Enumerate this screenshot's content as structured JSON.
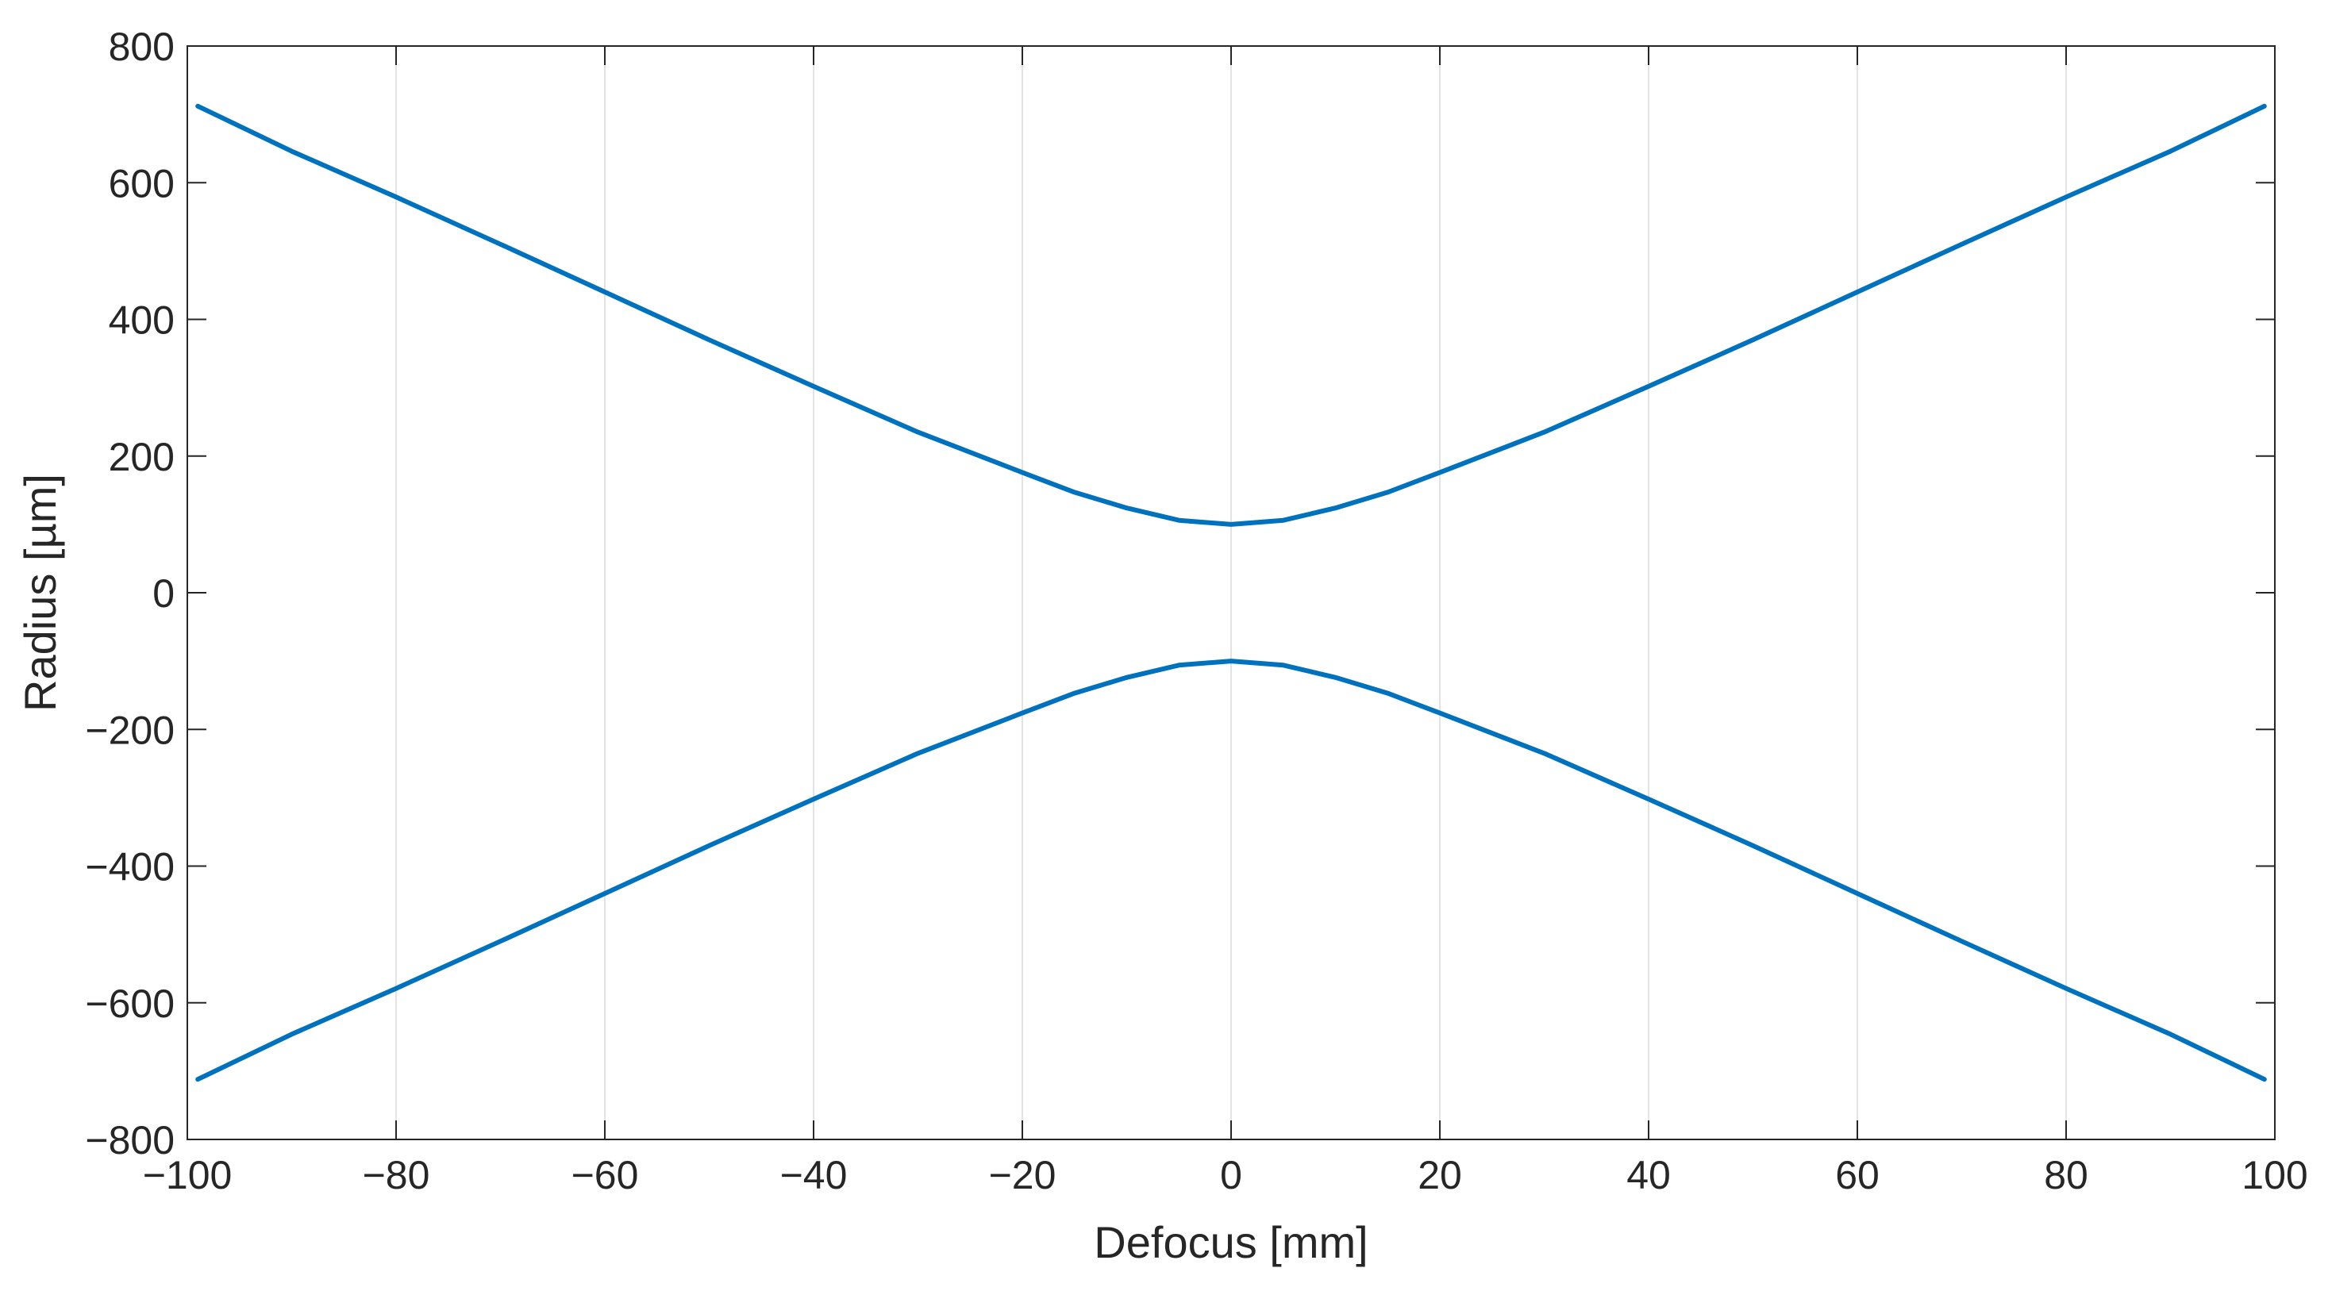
{
  "chart_data": {
    "type": "line",
    "title": "",
    "xlabel": "Defocus [mm]",
    "ylabel": "Radius [µm]",
    "xlim": [
      -100,
      100
    ],
    "ylim": [
      -800,
      800
    ],
    "x_ticks": [
      -100,
      -80,
      -60,
      -40,
      -20,
      0,
      20,
      40,
      60,
      80,
      100
    ],
    "x_tick_labels": [
      "−100",
      "−80",
      "−60",
      "−40",
      "−20",
      "0",
      "20",
      "40",
      "60",
      "80",
      "100"
    ],
    "y_ticks": [
      800,
      600,
      400,
      200,
      0,
      -200,
      -400,
      -600,
      -800
    ],
    "y_tick_labels": [
      "800",
      "600",
      "400",
      "200",
      "0",
      "−200",
      "−400",
      "−600",
      "−800"
    ],
    "grid": "vertical",
    "legend": "none",
    "line_color": "#0072BD",
    "series": [
      {
        "x": [
          -99,
          -90,
          -80,
          -70,
          -60,
          -50,
          -40,
          -30,
          -20,
          -15,
          -10,
          -5,
          0,
          5,
          10,
          15,
          20,
          30,
          40,
          50,
          60,
          70,
          80,
          90,
          99
        ],
        "values": [
          712,
          646,
          579,
          510,
          440,
          370,
          302,
          235,
          176,
          147,
          124,
          106,
          100,
          106,
          124,
          147,
          176,
          235,
          302,
          370,
          440,
          510,
          579,
          646,
          712
        ]
      },
      {
        "x": [
          -99,
          -90,
          -80,
          -70,
          -60,
          -50,
          -40,
          -30,
          -20,
          -15,
          -10,
          -5,
          0,
          5,
          10,
          15,
          20,
          30,
          40,
          50,
          60,
          70,
          80,
          90,
          99
        ],
        "values": [
          -712,
          -646,
          -579,
          -510,
          -440,
          -370,
          -302,
          -235,
          -176,
          -147,
          -124,
          -106,
          -100,
          -106,
          -124,
          -147,
          -176,
          -235,
          -302,
          -370,
          -440,
          -510,
          -579,
          -646,
          -712
        ]
      }
    ]
  }
}
